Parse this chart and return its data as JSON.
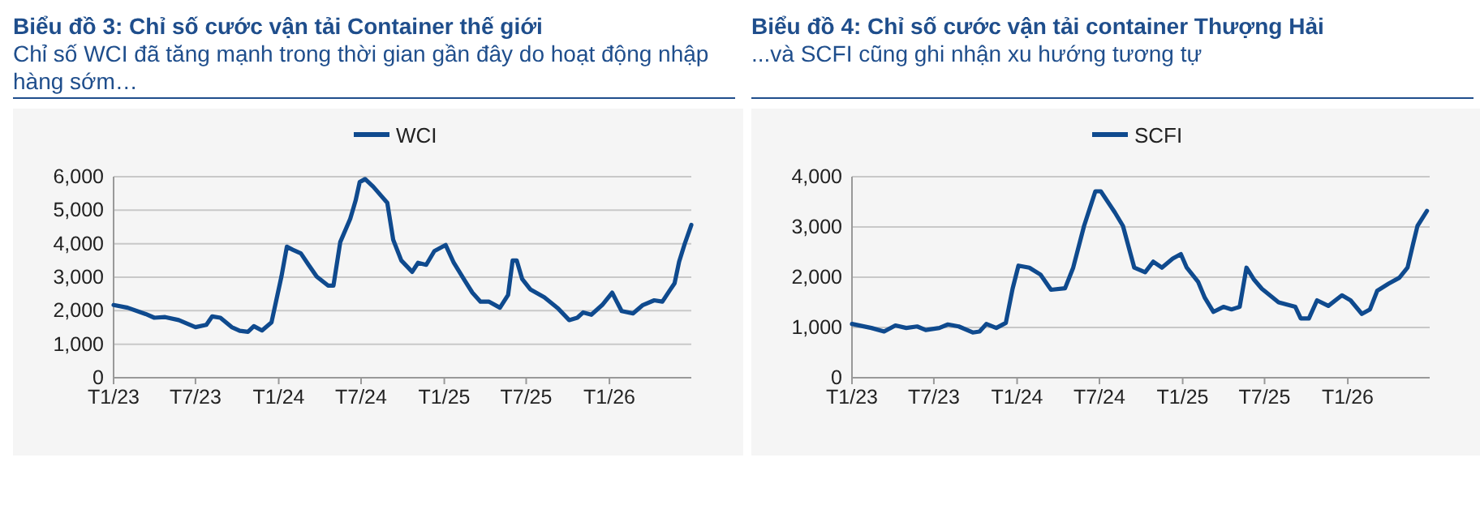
{
  "chart_data": [
    {
      "type": "line",
      "title": "Biểu đồ 3: Chỉ số cước vận tải Container thế giới",
      "subtitle": "Chỉ số WCI đã tăng mạnh trong thời gian gần đây do hoạt động nhập hàng sớm…",
      "series": [
        {
          "name": "WCI",
          "color": "#0f4a8e",
          "x": [
            "2023-01-01",
            "2023-02-01",
            "2023-03-13",
            "2023-04-01",
            "2023-04-25",
            "2023-05-25",
            "2023-07-01",
            "2023-07-25",
            "2023-08-07",
            "2023-08-25",
            "2023-09-19",
            "2023-10-07",
            "2023-10-25",
            "2023-11-07",
            "2023-11-25",
            "2023-12-16",
            "2024-01-07",
            "2024-01-19",
            "2024-02-01",
            "2024-02-19",
            "2024-03-07",
            "2024-03-25",
            "2024-04-19",
            "2024-05-01",
            "2024-05-16",
            "2024-06-07",
            "2024-06-19",
            "2024-06-28",
            "2024-07-10",
            "2024-07-28",
            "2024-08-28",
            "2024-09-10",
            "2024-09-28",
            "2024-10-22",
            "2024-11-04",
            "2024-11-22",
            "2024-12-10",
            "2025-01-04",
            "2025-01-22",
            "2025-02-16",
            "2025-03-04",
            "2025-03-22",
            "2025-04-10",
            "2025-05-04",
            "2025-05-22",
            "2025-06-01",
            "2025-06-10",
            "2025-06-22",
            "2025-07-10",
            "2025-08-10",
            "2025-09-10",
            "2025-10-04",
            "2025-10-22",
            "2025-11-04",
            "2025-11-22",
            "2025-12-16",
            "2026-01-07",
            "2026-01-28",
            "2026-02-22",
            "2026-03-16",
            "2026-04-10",
            "2026-04-28",
            "2026-05-16",
            "2026-05-25",
            "2026-06-04",
            "2026-06-16",
            "2026-07-01"
          ],
          "values": [
            2170,
            2090,
            1900,
            1790,
            1810,
            1720,
            1510,
            1580,
            1830,
            1790,
            1510,
            1400,
            1370,
            1540,
            1410,
            1650,
            3020,
            3910,
            3820,
            3710,
            3370,
            3020,
            2750,
            2750,
            4050,
            4740,
            5290,
            5840,
            5930,
            5700,
            5220,
            4120,
            3500,
            3160,
            3430,
            3370,
            3780,
            3960,
            3430,
            2880,
            2540,
            2270,
            2270,
            2090,
            2470,
            3500,
            3500,
            2950,
            2640,
            2400,
            2060,
            1720,
            1790,
            1950,
            1880,
            2170,
            2540,
            1990,
            1920,
            2170,
            2310,
            2270,
            2640,
            2820,
            3460,
            3980,
            4560
          ]
        }
      ],
      "xlim": [
        "2023-01-01",
        "2026-07-01"
      ],
      "xticks": [
        {
          "value": "2023-01",
          "label": "T1/23"
        },
        {
          "value": "2023-07",
          "label": "T7/23"
        },
        {
          "value": "2024-01",
          "label": "T1/24"
        },
        {
          "value": "2024-07",
          "label": "T7/24"
        },
        {
          "value": "2025-01",
          "label": "T1/25"
        },
        {
          "value": "2025-07",
          "label": "T7/25"
        },
        {
          "value": "2026-01",
          "label": "T1/26"
        }
      ],
      "ylim": [
        0,
        6000
      ],
      "yticks": [
        {
          "value": 0,
          "label": "0"
        },
        {
          "value": 1000,
          "label": "1,000"
        },
        {
          "value": 2000,
          "label": "2,000"
        },
        {
          "value": 3000,
          "label": "3,000"
        },
        {
          "value": 4000,
          "label": "4,000"
        },
        {
          "value": 5000,
          "label": "5,000"
        },
        {
          "value": 6000,
          "label": "6,000"
        }
      ],
      "grid": "y",
      "legend": "top",
      "marker": "none",
      "line_style": "solid"
    },
    {
      "type": "line",
      "title": "Biểu đồ 4: Chỉ số cước vận tải container Thượng Hải",
      "subtitle": "...và SCFI cũng ghi nhận xu hướng tương tự",
      "series": [
        {
          "name": "SCFI",
          "color": "#0f4a8e",
          "x": [
            "2023-01-01",
            "2023-02-13",
            "2023-03-13",
            "2023-04-07",
            "2023-05-01",
            "2023-05-25",
            "2023-06-13",
            "2023-07-13",
            "2023-08-01",
            "2023-08-25",
            "2023-09-25",
            "2023-10-10",
            "2023-10-25",
            "2023-11-16",
            "2023-12-07",
            "2023-12-22",
            "2024-01-04",
            "2024-01-28",
            "2024-02-22",
            "2024-03-16",
            "2024-04-16",
            "2024-05-04",
            "2024-05-28",
            "2024-06-22",
            "2024-07-04",
            "2024-08-04",
            "2024-08-22",
            "2024-09-16",
            "2024-10-10",
            "2024-10-28",
            "2024-11-16",
            "2024-12-10",
            "2024-12-28",
            "2025-01-10",
            "2025-02-04",
            "2025-02-19",
            "2025-03-10",
            "2025-04-01",
            "2025-04-19",
            "2025-05-07",
            "2025-05-22",
            "2025-06-07",
            "2025-06-25",
            "2025-08-01",
            "2025-09-07",
            "2025-09-19",
            "2025-10-07",
            "2025-10-25",
            "2025-11-19",
            "2025-12-19",
            "2026-01-07",
            "2026-02-01",
            "2026-02-19",
            "2026-03-07",
            "2026-04-01",
            "2026-04-25",
            "2026-05-13",
            "2026-05-25",
            "2026-06-04",
            "2026-06-25"
          ],
          "values": [
            1070,
            990,
            920,
            1040,
            990,
            1020,
            950,
            990,
            1060,
            1020,
            900,
            920,
            1070,
            990,
            1090,
            1770,
            2230,
            2190,
            2050,
            1750,
            1780,
            2190,
            3020,
            3710,
            3710,
            3290,
            3020,
            2190,
            2100,
            2310,
            2190,
            2370,
            2460,
            2190,
            1910,
            1590,
            1310,
            1410,
            1360,
            1410,
            2190,
            1960,
            1770,
            1500,
            1410,
            1180,
            1180,
            1540,
            1430,
            1640,
            1540,
            1270,
            1360,
            1730,
            1870,
            1990,
            2190,
            2650,
            3020,
            3320
          ]
        }
      ],
      "xlim": [
        "2023-01-01",
        "2026-07-01"
      ],
      "xticks": [
        {
          "value": "2023-01",
          "label": "T1/23"
        },
        {
          "value": "2023-07",
          "label": "T7/23"
        },
        {
          "value": "2024-01",
          "label": "T1/24"
        },
        {
          "value": "2024-07",
          "label": "T7/24"
        },
        {
          "value": "2025-01",
          "label": "T1/25"
        },
        {
          "value": "2025-07",
          "label": "T7/25"
        },
        {
          "value": "2026-01",
          "label": "T1/26"
        }
      ],
      "ylim": [
        0,
        4000
      ],
      "yticks": [
        {
          "value": 0,
          "label": "0"
        },
        {
          "value": 1000,
          "label": "1,000"
        },
        {
          "value": 2000,
          "label": "2,000"
        },
        {
          "value": 3000,
          "label": "3,000"
        },
        {
          "value": 4000,
          "label": "4,000"
        }
      ],
      "grid": "y",
      "legend": "top",
      "marker": "none",
      "line_style": "solid"
    }
  ]
}
